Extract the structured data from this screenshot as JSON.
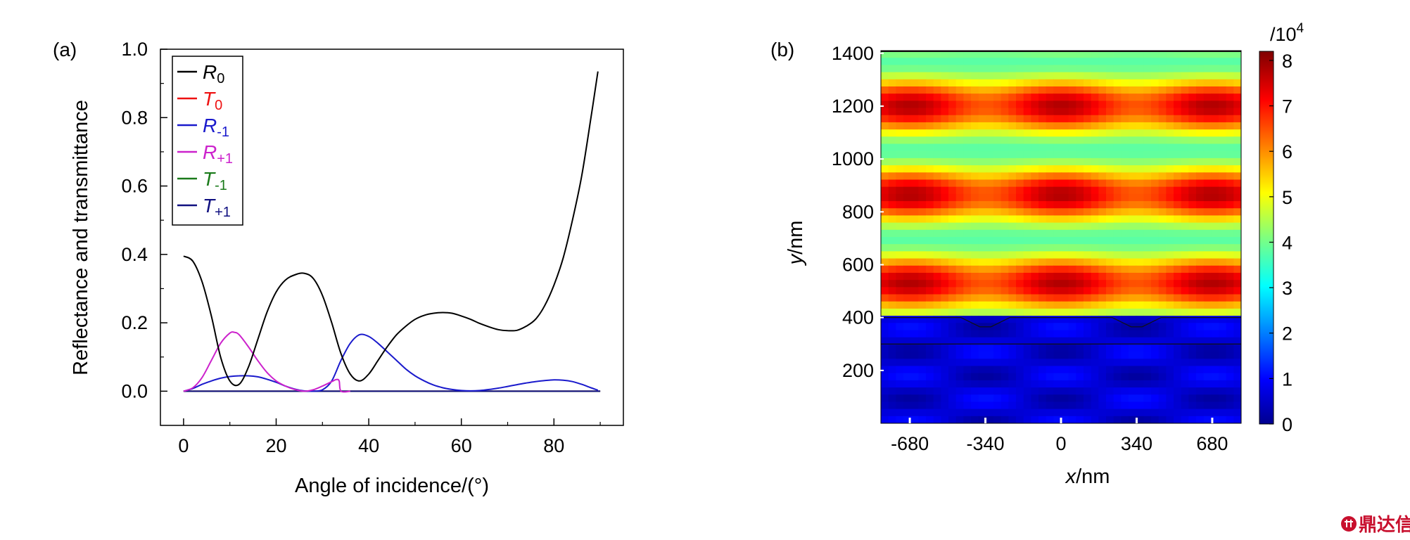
{
  "logo": {
    "text": "鼎达信",
    "color": "#c8102e"
  },
  "chart_data": [
    {
      "type": "line",
      "panel_label": "(a)",
      "xlabel": "Angle of incidence/(°)",
      "ylabel": "Reflectance and transmittance",
      "xlim": [
        -5,
        95
      ],
      "ylim": [
        -0.1,
        1.0
      ],
      "xticks": [
        0,
        20,
        40,
        60,
        80
      ],
      "yticks": [
        0.0,
        0.2,
        0.4,
        0.6,
        0.8,
        1.0
      ],
      "ytick_labels": [
        "0.0",
        "0.2",
        "0.4",
        "0.6",
        "0.8",
        "1.0"
      ],
      "legend_position": "top-left",
      "series": [
        {
          "name": "R",
          "sub": "0",
          "color": "#000000",
          "x": [
            0,
            2,
            4,
            6,
            8,
            10,
            12,
            14,
            16,
            18,
            20,
            22,
            24,
            26,
            28,
            30,
            32,
            34,
            36,
            38,
            40,
            42,
            44,
            46,
            48,
            50,
            52,
            54,
            56,
            58,
            60,
            62,
            64,
            66,
            68,
            70,
            72,
            74,
            76,
            78,
            80,
            82,
            84,
            86,
            88,
            89.5
          ],
          "y": [
            0.395,
            0.38,
            0.32,
            0.22,
            0.1,
            0.03,
            0.02,
            0.07,
            0.15,
            0.23,
            0.29,
            0.325,
            0.34,
            0.345,
            0.33,
            0.28,
            0.2,
            0.11,
            0.05,
            0.03,
            0.05,
            0.09,
            0.13,
            0.165,
            0.19,
            0.21,
            0.222,
            0.228,
            0.23,
            0.228,
            0.22,
            0.21,
            0.198,
            0.188,
            0.18,
            0.177,
            0.178,
            0.19,
            0.21,
            0.25,
            0.31,
            0.39,
            0.5,
            0.63,
            0.8,
            0.935
          ]
        },
        {
          "name": "T",
          "sub": "0",
          "color": "#ee1111",
          "x": [
            0,
            90
          ],
          "y": [
            0,
            0
          ]
        },
        {
          "name": "R",
          "sub": "-1",
          "color": "#1a1acc",
          "x": [
            0,
            2,
            4,
            6,
            8,
            10,
            12,
            14,
            16,
            18,
            20,
            22,
            24,
            26,
            28,
            30,
            32,
            34,
            36,
            38,
            40,
            42,
            44,
            46,
            48,
            50,
            52,
            54,
            56,
            58,
            60,
            62,
            64,
            66,
            68,
            70,
            72,
            74,
            76,
            78,
            80,
            82,
            84,
            86,
            88,
            89.5
          ],
          "y": [
            0,
            0.008,
            0.02,
            0.03,
            0.038,
            0.043,
            0.045,
            0.045,
            0.042,
            0.035,
            0.026,
            0.015,
            0.006,
            0.001,
            0.0,
            0.004,
            0.03,
            0.09,
            0.14,
            0.165,
            0.16,
            0.14,
            0.115,
            0.09,
            0.065,
            0.045,
            0.03,
            0.018,
            0.01,
            0.005,
            0.002,
            0.001,
            0.002,
            0.005,
            0.009,
            0.014,
            0.019,
            0.024,
            0.028,
            0.031,
            0.033,
            0.032,
            0.028,
            0.02,
            0.01,
            0.003
          ]
        },
        {
          "name": "R",
          "sub": "+1",
          "color": "#cc22cc",
          "x": [
            0,
            2,
            4,
            6,
            8,
            10,
            11,
            12,
            14,
            16,
            18,
            20,
            22,
            24,
            26,
            28,
            30,
            32,
            33,
            33.6,
            34,
            36
          ],
          "y": [
            0,
            0.01,
            0.04,
            0.09,
            0.14,
            0.17,
            0.172,
            0.165,
            0.13,
            0.09,
            0.055,
            0.03,
            0.015,
            0.005,
            0.0,
            0.004,
            0.015,
            0.028,
            0.034,
            0.03,
            0.0,
            0.0
          ]
        },
        {
          "name": "T",
          "sub": "-1",
          "color": "#1a7a1a",
          "x": [
            0,
            90
          ],
          "y": [
            0,
            0
          ]
        },
        {
          "name": "T",
          "sub": "+1",
          "color": "#101080",
          "x": [
            0,
            90
          ],
          "y": [
            0,
            0
          ]
        }
      ]
    },
    {
      "type": "heatmap",
      "panel_label": "(b)",
      "xlabel_italic": "x",
      "xlabel_unit": "/nm",
      "ylabel_italic": "y",
      "ylabel_unit": "/nm",
      "xlim": [
        -810,
        810
      ],
      "ylim": [
        0,
        1410
      ],
      "xticks": [
        -680,
        -340,
        0,
        340,
        680
      ],
      "yticks": [
        200,
        400,
        600,
        800,
        1000,
        1200,
        1400
      ],
      "colorbar": {
        "title": "/10",
        "title_exp": "4",
        "ticks": [
          0,
          1,
          2,
          3,
          4,
          5,
          6,
          7,
          8
        ],
        "range": [
          0,
          8.2
        ]
      },
      "interface_y": 400,
      "substrate_y": 300,
      "groove_centers": [
        -340,
        340
      ],
      "groove_bottom_y": 365,
      "field_peaks_y": [
        1200,
        875,
        530
      ]
    }
  ]
}
